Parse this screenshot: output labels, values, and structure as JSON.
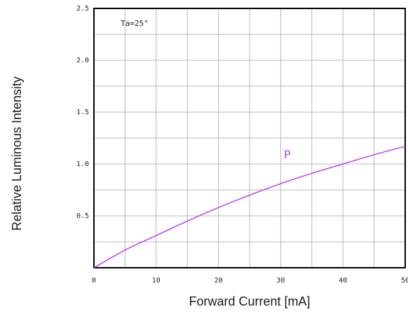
{
  "chart_data": {
    "type": "line",
    "xlabel": "Forward Current  [mA]",
    "ylabel": "Relative Luminous Intensity",
    "annotation": "Ta=25°",
    "xlim": [
      0,
      50
    ],
    "ylim": [
      0,
      2.5
    ],
    "x_ticks": [
      0,
      10,
      20,
      30,
      40,
      50
    ],
    "x_tick_labels": [
      "0",
      "10",
      "20",
      "30",
      "40",
      "50"
    ],
    "y_ticks": [
      0.5,
      1.0,
      1.5,
      2.0,
      2.5
    ],
    "y_tick_labels": [
      "0.5",
      "1.0",
      "1.5",
      "2.0",
      "2.5"
    ],
    "grid": true,
    "series_color": "#bf40f0",
    "series": [
      {
        "name": "P",
        "x": [
          0,
          5,
          10,
          15,
          20,
          25,
          30,
          35,
          40,
          45,
          50
        ],
        "y": [
          0,
          0.17,
          0.31,
          0.45,
          0.58,
          0.7,
          0.81,
          0.91,
          1.0,
          1.09,
          1.17
        ]
      }
    ]
  }
}
